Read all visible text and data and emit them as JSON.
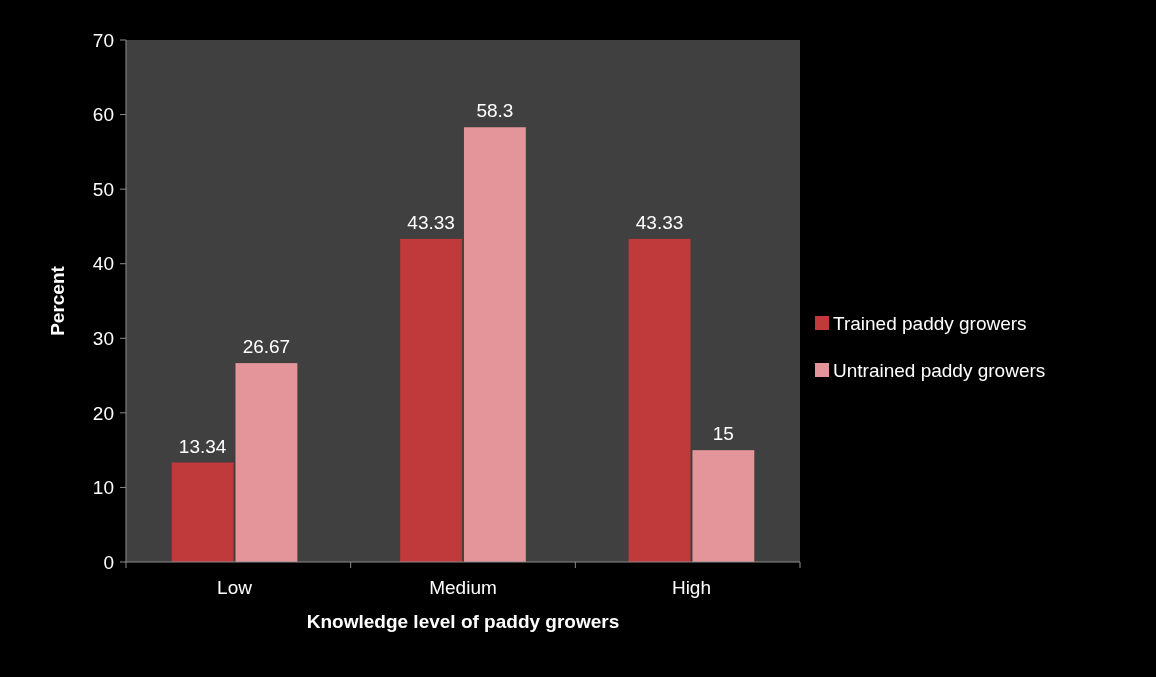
{
  "chart_data": {
    "type": "bar",
    "xlabel": "Knowledge level of paddy growers",
    "ylabel": "Percent",
    "categories": [
      "Low",
      "Medium",
      "High"
    ],
    "series": [
      {
        "name": "Trained paddy growers",
        "color": "#c0393b",
        "values": [
          13.34,
          43.33,
          43.33
        ]
      },
      {
        "name": "Untrained paddy growers",
        "color": "#e3959a",
        "values": [
          26.67,
          58.3,
          15
        ]
      }
    ],
    "ylim": [
      0,
      70
    ],
    "yticks": [
      0,
      10,
      20,
      30,
      40,
      50,
      60,
      70
    ],
    "data_labels": true,
    "legend": "right",
    "grid": false
  }
}
